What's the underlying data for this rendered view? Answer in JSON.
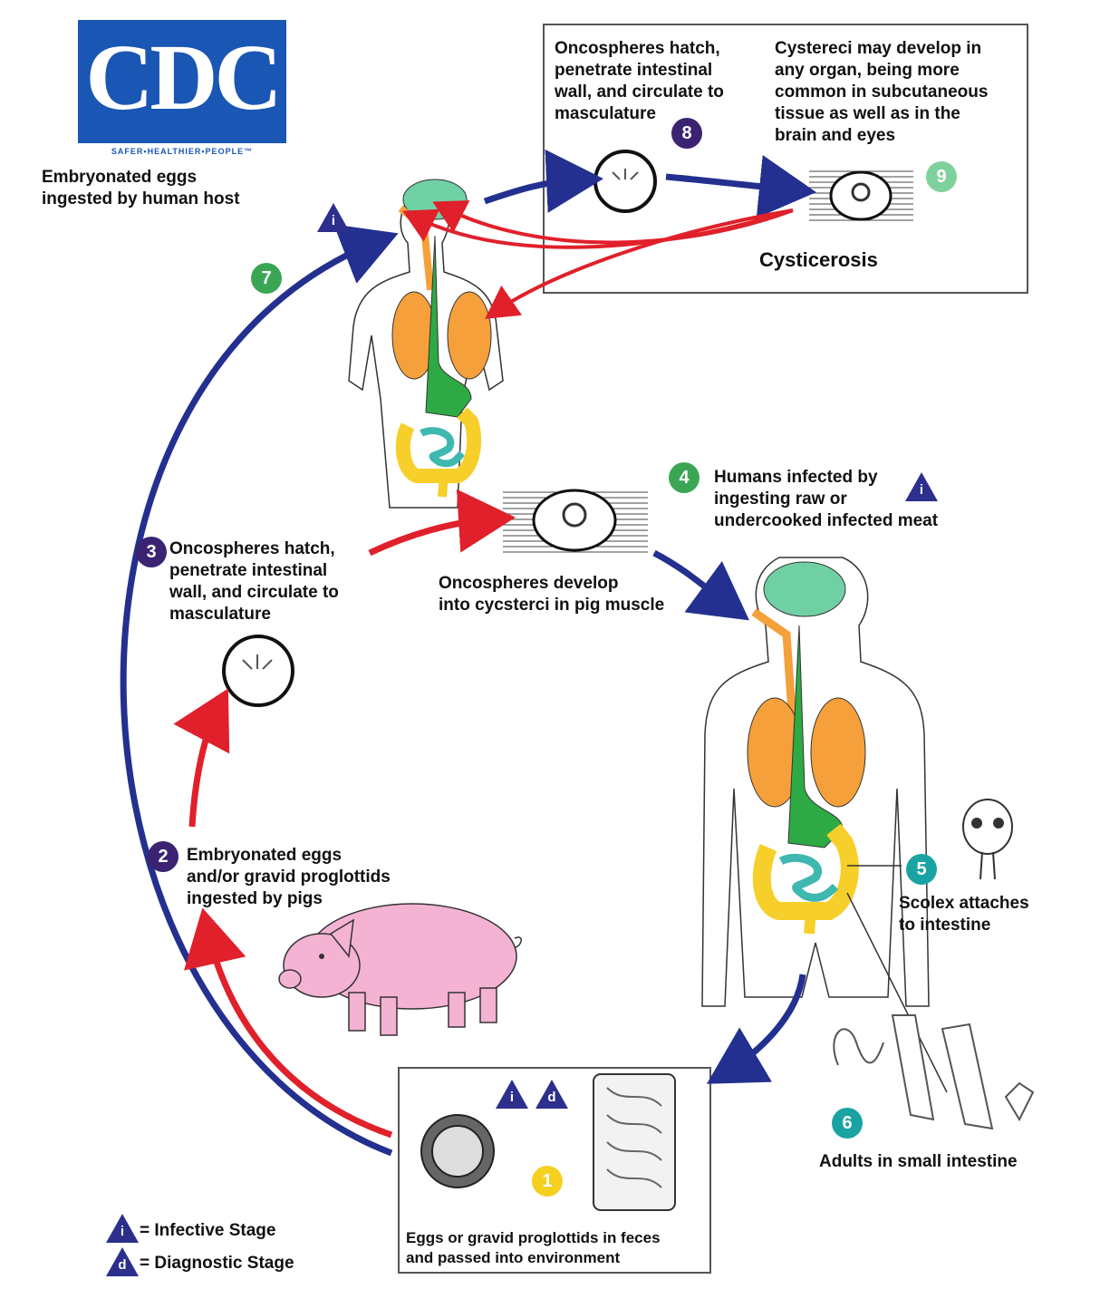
{
  "logo": {
    "wordmark": "CDC",
    "tagline": "SAFER•HEALTHIER•PEOPLE™"
  },
  "labels": {
    "human_ingests_eggs": "Embryonated eggs\ningested by human host",
    "stage8_text": "Oncospheres hatch,\npenetrate intestinal\nwall, and circulate to\nmasculature",
    "stage9_text": "Cystereci may develop in\nany organ, being more\ncommon in subcutaneous\ntissue as well as in the\nbrain and eyes",
    "cysticerosis": "Cysticerosis",
    "stage4_text": "Humans infected by\ningesting raw or\nundercooked infected meat",
    "stage3_text": "Oncospheres hatch,\npenetrate intestinal\nwall, and circulate to\nmasculature",
    "pig_muscle_text": "Oncospheres develop\ninto cycsterci in pig muscle",
    "stage2_text": "Embryonated eggs\nand/or gravid proglottids\ningested by pigs",
    "stage5_text": "Scolex attaches\nto intestine",
    "stage6_text": "Adults in small intestine",
    "stage1_text": "Eggs or gravid proglottids in feces\nand passed into environment"
  },
  "legend": {
    "infective": "= Infective Stage",
    "diagnostic": "= Diagnostic Stage"
  },
  "stage_badges": [
    {
      "num": "1",
      "color": "#f5d020"
    },
    {
      "num": "2",
      "color": "#3b2372"
    },
    {
      "num": "3",
      "color": "#3b2372"
    },
    {
      "num": "4",
      "color": "#3aa655"
    },
    {
      "num": "5",
      "color": "#1aa3a3"
    },
    {
      "num": "6",
      "color": "#1aa3a3"
    },
    {
      "num": "7",
      "color": "#3aa655"
    },
    {
      "num": "8",
      "color": "#3b2372"
    },
    {
      "num": "9",
      "color": "#7fd19c"
    }
  ],
  "stage_markers": {
    "infective": "i",
    "diagnostic": "d"
  },
  "colors": {
    "blue_arrow": "#23308f",
    "red_arrow": "#e0202a",
    "brain": "#6fd1a3",
    "lungs": "#f5a03a",
    "digestive": "#2eaa44",
    "colon": "#f7cf2a",
    "small_intestine": "#3fb8b0",
    "pig": "#f4b3d3",
    "triangle": "#2c2f8c"
  }
}
